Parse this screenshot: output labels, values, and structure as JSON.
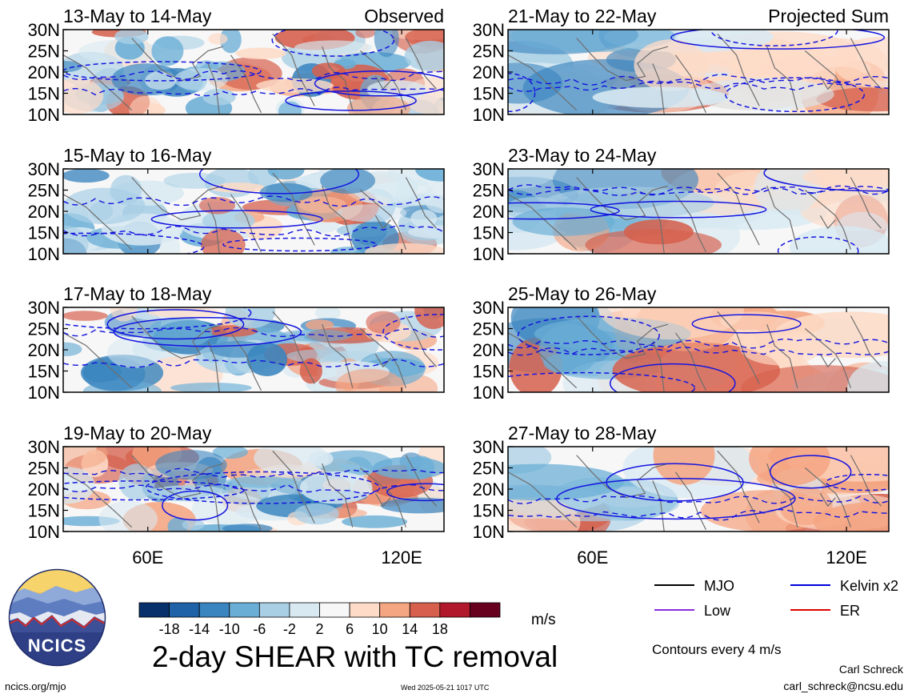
{
  "chart_data": {
    "type": "heatmap",
    "title": "2-day SHEAR with TC removal",
    "units": "m/s",
    "contour_note": "Contours every 4 m/s",
    "column_labels": {
      "observed": "Observed",
      "projected": "Projected Sum"
    },
    "lat_ticks": [
      "30N",
      "25N",
      "20N",
      "15N",
      "10N"
    ],
    "lon_ticks": [
      "60E",
      "120E"
    ],
    "xlim": [
      40,
      130
    ],
    "ylim": [
      10,
      30
    ],
    "colorbar": {
      "tick_labels": [
        "-18",
        "-14",
        "-10",
        "-6",
        "-2",
        "2",
        "6",
        "10",
        "14",
        "18"
      ],
      "colors": [
        "#08306b",
        "#1f62a8",
        "#3a85bf",
        "#6aaed6",
        "#a9cfe5",
        "#d8e9f2",
        "#f7f7f7",
        "#fddbc7",
        "#f4a582",
        "#d6604d",
        "#b2182b",
        "#67001f"
      ]
    },
    "legend": [
      {
        "label": "MJO",
        "color": "#000000"
      },
      {
        "label": "Kelvin x2",
        "color": "#0000dd"
      },
      {
        "label": "Low",
        "color": "#8a2be2"
      },
      {
        "label": "ER",
        "color": "#dd0000"
      }
    ],
    "panels": [
      {
        "period": "13-May to 14-May",
        "column": "observed"
      },
      {
        "period": "15-May to 16-May",
        "column": "observed"
      },
      {
        "period": "17-May to 18-May",
        "column": "observed"
      },
      {
        "period": "19-May to 20-May",
        "column": "observed"
      },
      {
        "period": "21-May to 22-May",
        "column": "projected"
      },
      {
        "period": "23-May to 24-May",
        "column": "projected"
      },
      {
        "period": "25-May to 26-May",
        "column": "projected"
      },
      {
        "period": "27-May to 28-May",
        "column": "projected"
      }
    ]
  },
  "footer": {
    "logo_text": "NCICS",
    "site": "ncics.org/mjo",
    "timestamp": "Wed 2025-05-21 1017 UTC",
    "author": "Carl Schreck",
    "email": "carl_schreck@ncsu.edu"
  }
}
